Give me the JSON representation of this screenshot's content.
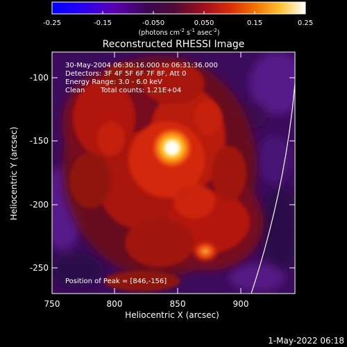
{
  "colorbar": {
    "ticks": [
      "-0.25",
      "-0.15",
      "-0.050",
      "0.050",
      "0.15",
      "0.25"
    ],
    "units_main": "(photons cm",
    "units_exp1": "-2",
    "units_mid": " s",
    "units_exp2": "-1",
    "units_end": " asec",
    "units_exp3": "-2",
    "units_close": ")",
    "colors": [
      "#0000ff",
      "#3d00e0",
      "#6a009a",
      "#3c0a58",
      "#4a0a40",
      "#8a0e30",
      "#c21a10",
      "#f26a00",
      "#ffb000",
      "#ffe060",
      "#ffffff"
    ]
  },
  "title": "Reconstructed RHESSI Image",
  "info": {
    "time": "30-May-2004 06:30:16.000 to 06:31:36.000",
    "detectors": "Detectors: 3F 4F 5F 6F 7F 8F, Att 0",
    "energy": "Energy Range: 3.0 - 6.0 keV",
    "clean": "Clean",
    "counts": "Total counts: 1.21E+04",
    "peak": "Position of Peak = [846,-156]"
  },
  "axes": {
    "xlabel": "Heliocentric X (arcsec)",
    "ylabel": "Heliocentric Y (arcsec)",
    "xticks": [
      "750",
      "800",
      "850",
      "900"
    ],
    "yticks": [
      "-100",
      "-150",
      "-200",
      "-250"
    ]
  },
  "footer": {
    "date": "1-May-2022 06:18"
  },
  "image": {
    "peak_x_arcsec": 846,
    "peak_y_arcsec": -156,
    "x_range": [
      750,
      943
    ],
    "y_range": [
      -272,
      -75
    ],
    "colors": {
      "background": "#3a0a5a",
      "purple": "#5a1a8a",
      "dark_red": "#6a0a1a",
      "red": "#b01808",
      "bright_red": "#d82a08",
      "orange": "#f07010",
      "yellow": "#ffc840",
      "white": "#ffffff"
    }
  }
}
